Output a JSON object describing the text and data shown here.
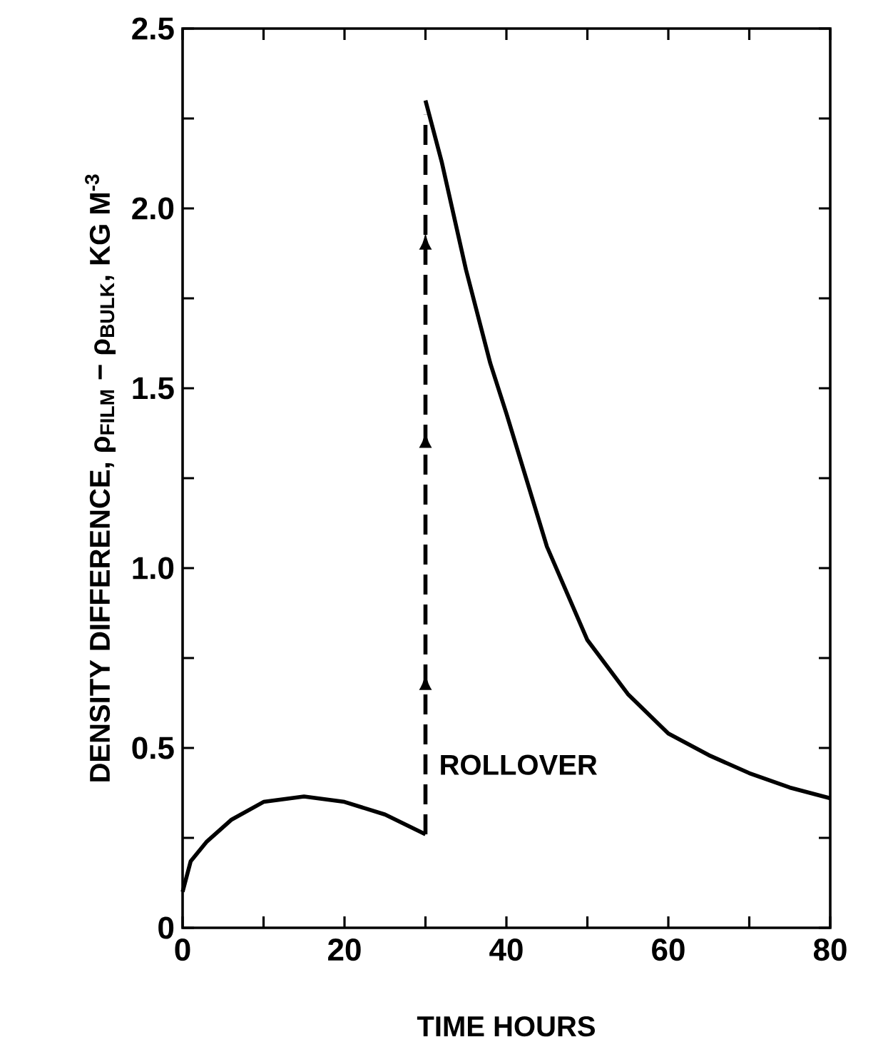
{
  "chart_data": {
    "type": "line",
    "xlabel": "TIME    HOURS",
    "ylabel": "DENSITY DIFFERENCE, ρ$_{FILM}$ − ρ$_{BULK}$, KG M$^{-3}$",
    "series": [
      {
        "color": "#000000",
        "x": [
          0,
          1,
          3,
          6,
          10,
          15,
          20,
          25,
          30
        ],
        "values": [
          0.1,
          0.185,
          0.24,
          0.3,
          0.35,
          0.365,
          0.35,
          0.315,
          0.26
        ]
      },
      {
        "color": "#000000",
        "x": [
          30,
          32,
          35,
          38,
          40,
          45,
          50,
          55,
          60,
          65,
          70,
          75,
          80
        ],
        "values": [
          2.3,
          2.13,
          1.83,
          1.57,
          1.43,
          1.06,
          0.8,
          0.65,
          0.54,
          0.48,
          0.43,
          0.39,
          0.36
        ]
      }
    ],
    "annotations": [
      "ROLLOVER"
    ],
    "xlim": [
      0,
      80
    ],
    "xticks": [
      0,
      {
        "value": 10,
        "label": null
      },
      20,
      {
        "value": 30,
        "label": null
      },
      40,
      {
        "value": 50,
        "label": null
      },
      60,
      {
        "value": 70,
        "label": null
      },
      80
    ],
    "ylim": [
      0,
      2.5
    ],
    "yticks": [
      0,
      {
        "value": 0.25,
        "label": null
      },
      {
        "value": 0.5,
        "label": "0.5"
      },
      {
        "value": 0.75,
        "label": null
      },
      {
        "value": 1,
        "label": "1.0"
      },
      {
        "value": 1.25,
        "label": null
      },
      {
        "value": 1.5,
        "label": "1.5"
      },
      {
        "value": 1.75,
        "label": null
      },
      {
        "value": 2,
        "label": "2.0"
      },
      {
        "value": 2.25,
        "label": null
      },
      {
        "value": 2.5,
        "label": "2.5"
      }
    ],
    "line_style": "solid"
  }
}
